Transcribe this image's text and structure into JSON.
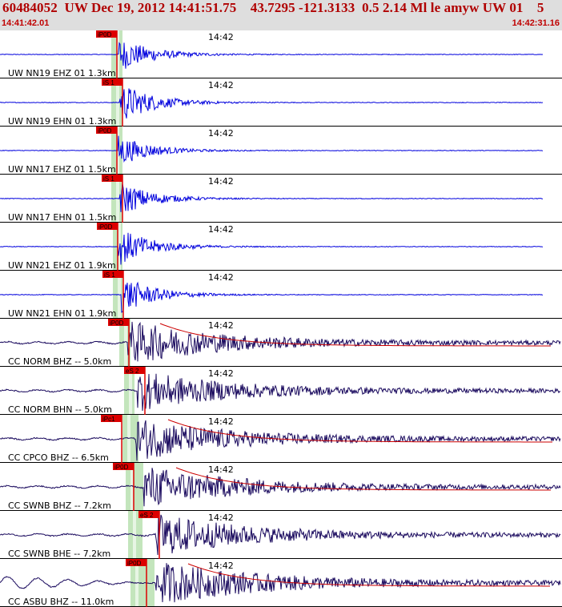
{
  "header": {
    "title": "60484052  UW Dec 19, 2012 14:41:51.75    43.7295 -121.3133  0.5 2.14 Ml le amyw UW 01    5",
    "start_time": "14:41:42.01",
    "end_time": "14:42:31.16"
  },
  "colors": {
    "background": "#ffffff",
    "header_bg": "#dedede",
    "header_text": "#b00000",
    "trace_short_period": "#0000dd",
    "trace_broadband": "#1a0a5e",
    "pick_box": "#dd0000",
    "envelope": "#cc0000",
    "window_band": "#b8e0b0"
  },
  "time_label": "14:42",
  "panels": [
    {
      "label": "UW NN19 EHZ 01 1.3km",
      "pick": "iP0D",
      "kind": "sp"
    },
    {
      "label": "UW NN19 EHN 01 1.3km",
      "pick": "iS 1",
      "kind": "sp"
    },
    {
      "label": "UW NN17 EHZ 01 1.5km",
      "pick": "iP0D",
      "kind": "sp"
    },
    {
      "label": "UW NN17 EHN 01 1.5km",
      "pick": "iS 1",
      "kind": "sp"
    },
    {
      "label": "UW NN21 EHZ 01 1.9km",
      "pick": "iP0D",
      "kind": "sp"
    },
    {
      "label": "UW NN21 EHN 01 1.9km",
      "pick": "iS 1",
      "kind": "sp"
    },
    {
      "label": "CC NORM BHZ -- 5.0km",
      "pick": "iP0D",
      "kind": "bb"
    },
    {
      "label": "CC NORM BHN -- 5.0km",
      "pick": "eS 2",
      "kind": "bb"
    },
    {
      "label": "CC CPCO BHZ -- 6.5km",
      "pick": "iPc1",
      "kind": "bb"
    },
    {
      "label": "CC SWNB BHZ -- 7.2km",
      "pick": "iP0D",
      "kind": "bb"
    },
    {
      "label": "CC SWNB BHE -- 7.2km",
      "pick": "eS 2",
      "kind": "bb"
    },
    {
      "label": "CC ASBU BHZ -- 11.0km",
      "pick": "iP0D",
      "kind": "bb"
    }
  ]
}
